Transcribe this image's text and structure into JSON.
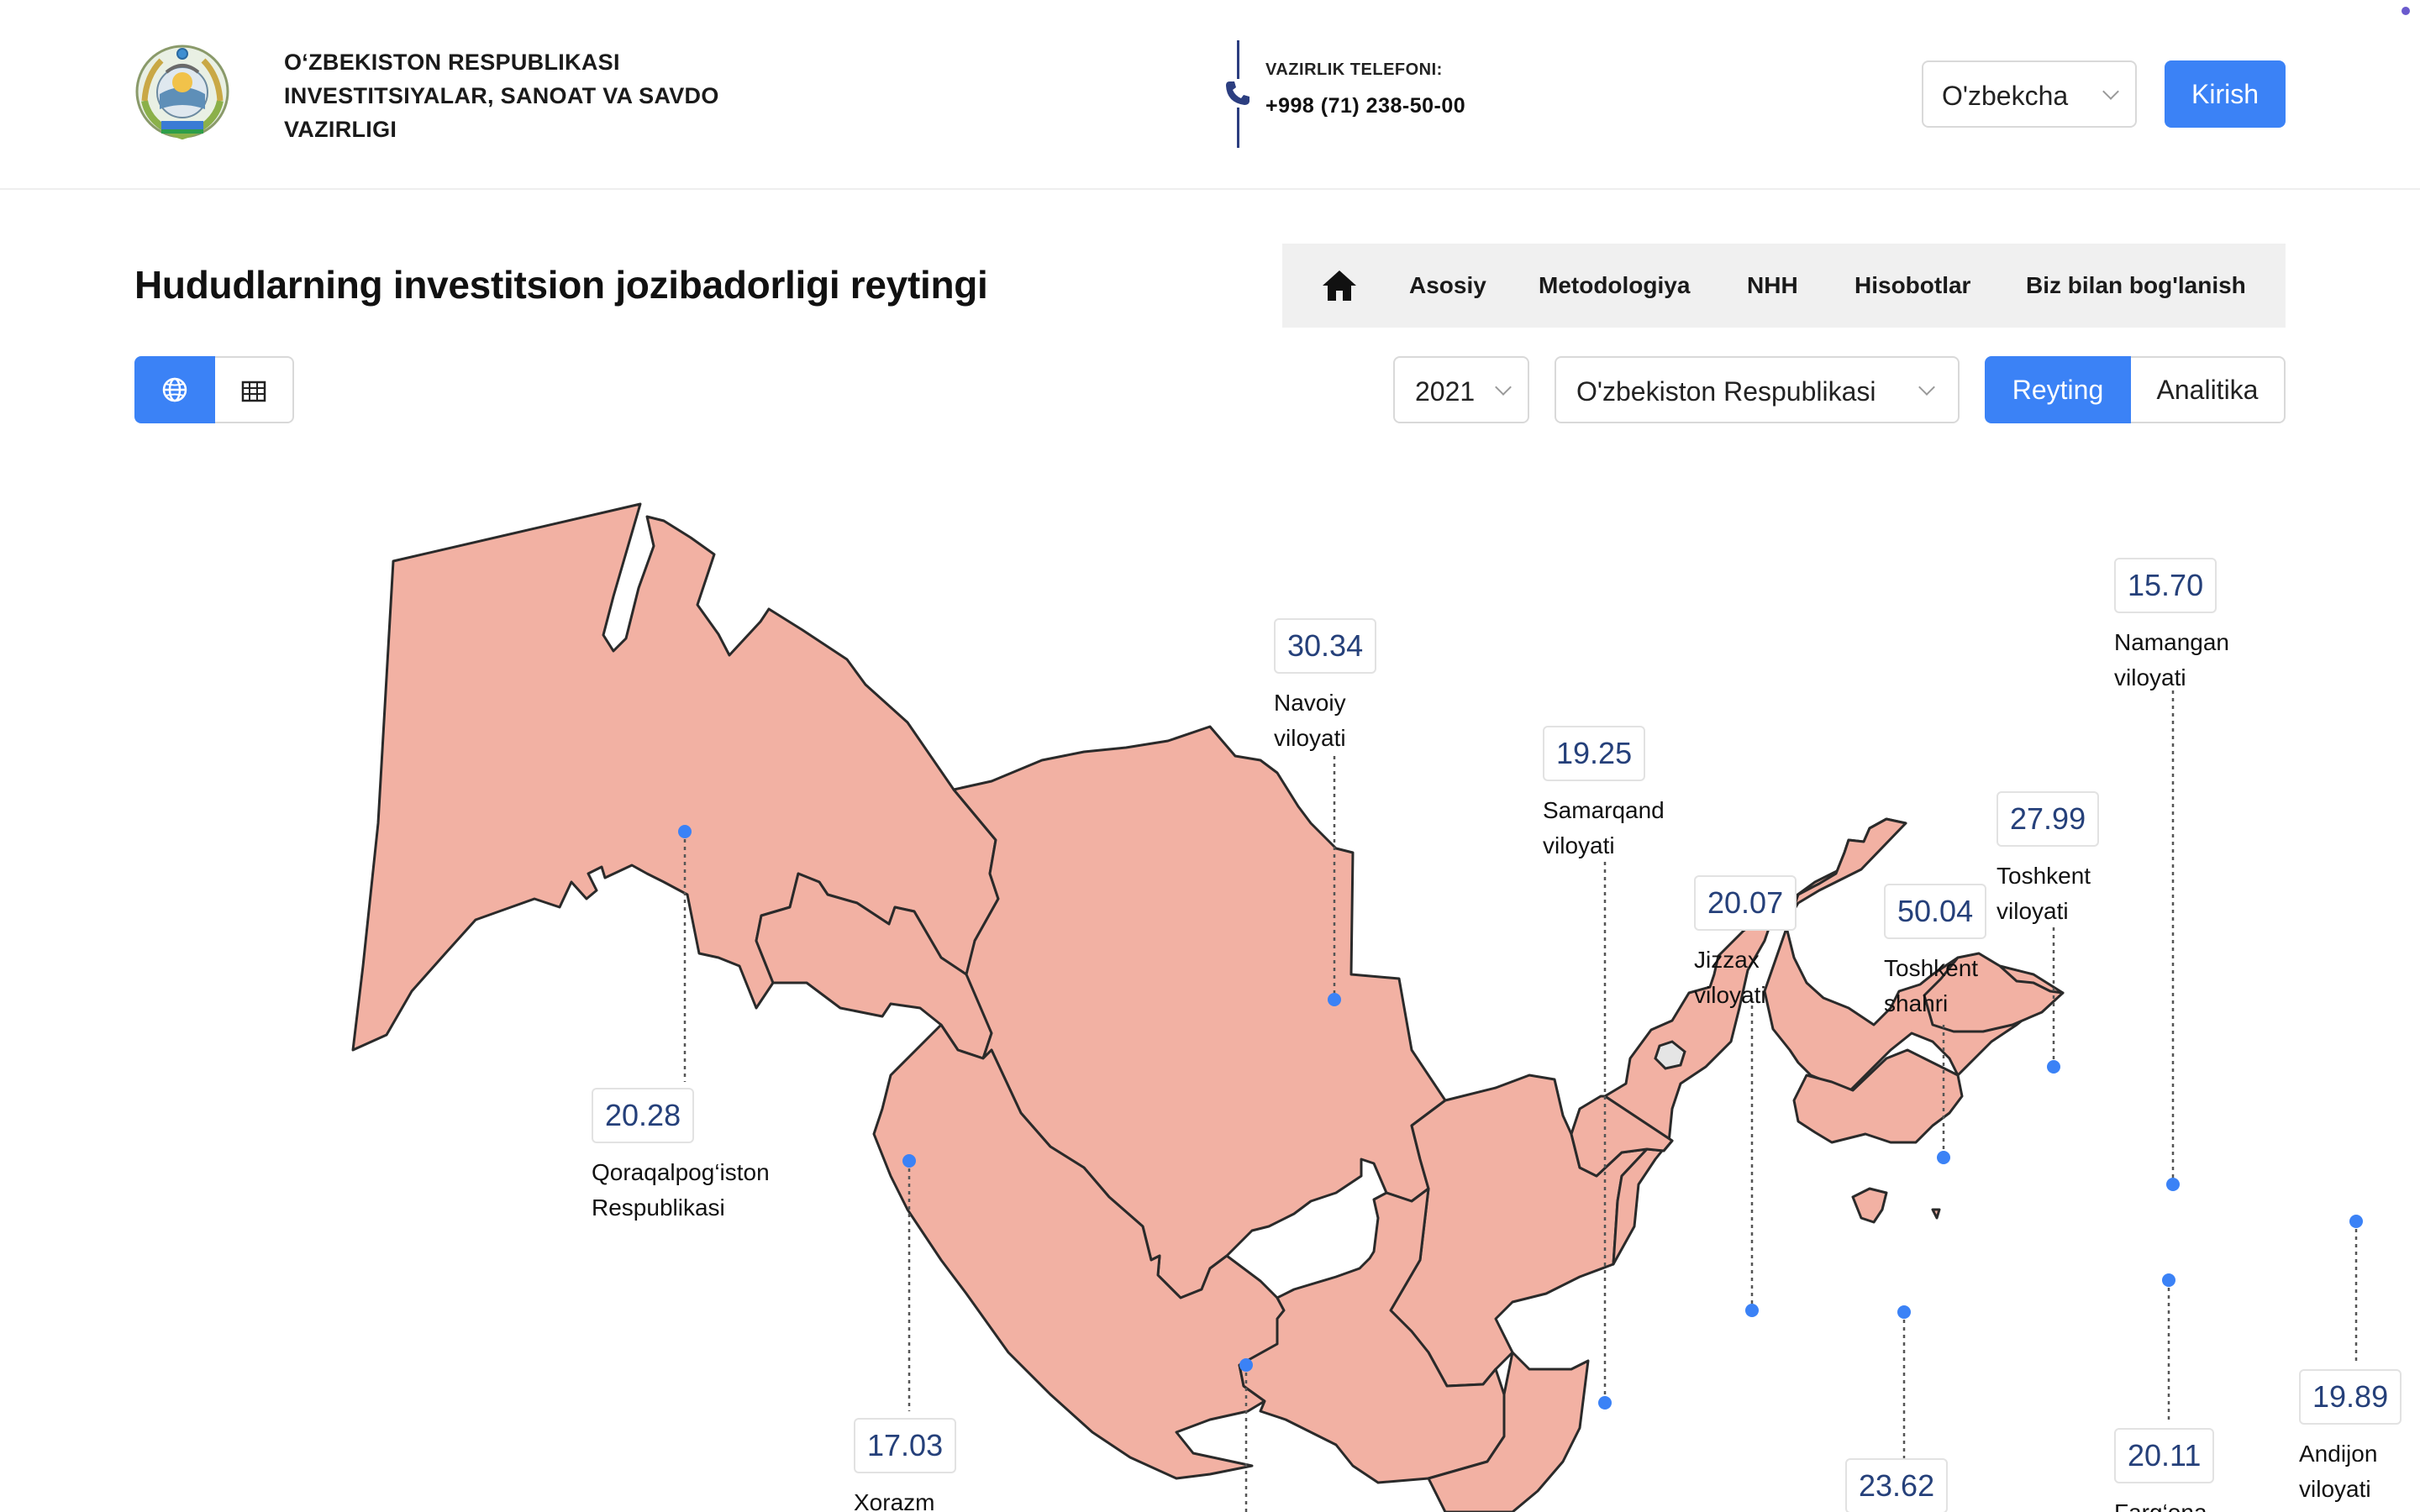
{
  "header": {
    "org_line1": "O‘ZBEKISTON RESPUBLIKASI",
    "org_line2": "INVESTITSIYALAR, SANOAT VA SAVDO",
    "org_line3": "VAZIRLIGI",
    "phone_label": "VAZIRLIK TELEFONI:",
    "phone_number": "+998 (71) 238-50-00",
    "language": "O'zbekcha",
    "login_label": "Kirish"
  },
  "page_title": "Hududlarning investitsion jozibadorligi reytingi",
  "nav": {
    "items": [
      {
        "label": "Asosiy"
      },
      {
        "label": "Metodologiya"
      },
      {
        "label": "NHH"
      },
      {
        "label": "Hisobotlar"
      },
      {
        "label": "Biz bilan bog'lanish"
      }
    ]
  },
  "controls": {
    "year": "2021",
    "region": "O'zbekiston Respublikasi",
    "mode_active": "Reyting",
    "mode_other": "Analitika"
  },
  "colors": {
    "accent": "#3b82f6",
    "region_fill": "#f2b1a3",
    "value_text": "#25407a"
  },
  "regions": [
    {
      "value": "20.28",
      "name": "Qoraqalpog‘iston\nRespublikasi"
    },
    {
      "value": "30.34",
      "name": "Navoiy\nviloyati"
    },
    {
      "value": "19.25",
      "name": "Samarqand\nviloyati"
    },
    {
      "value": "20.07",
      "name": "Jizzax\nviloyati"
    },
    {
      "value": "50.04",
      "name": "Toshkent\nshahri"
    },
    {
      "value": "27.99",
      "name": "Toshkent\nviloyati"
    },
    {
      "value": "15.70",
      "name": "Namangan\nviloyati"
    },
    {
      "value": "17.03",
      "name": "Xorazm"
    },
    {
      "value": "23.62",
      "name": ""
    },
    {
      "value": "20.11",
      "name": "Farg‘ona"
    },
    {
      "value": "19.89",
      "name": "Andijon\nviloyati"
    }
  ]
}
